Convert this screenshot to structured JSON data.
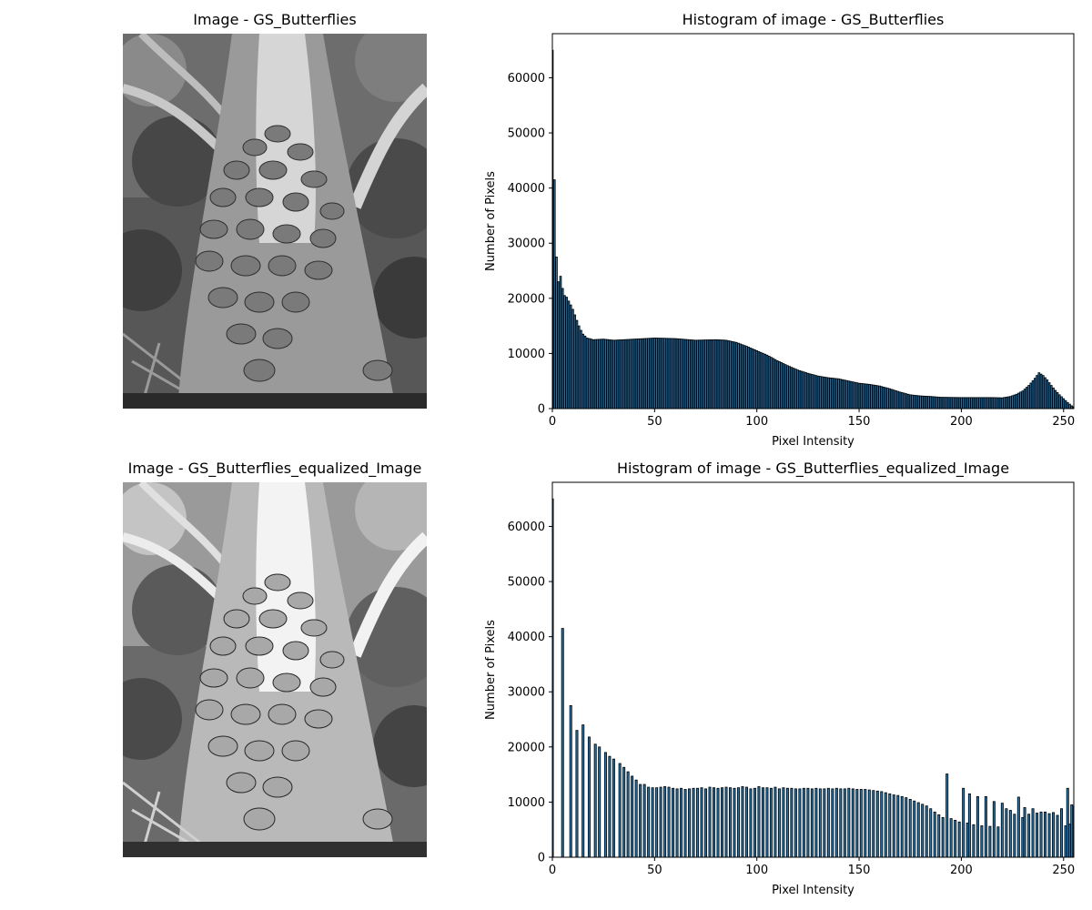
{
  "chart_data": [
    {
      "type": "image",
      "title": "Image - GS_Butterflies",
      "image_content": "grayscale photo of many butterflies covering a tree trunk in a forest with ferns"
    },
    {
      "type": "bar",
      "title": "Histogram of image - GS_Butterflies",
      "xlabel": "Pixel Intensity",
      "ylabel": "Number of Pixels",
      "xlim": [
        0,
        255
      ],
      "ylim": [
        0,
        68000
      ],
      "xticks": [
        "0",
        "50",
        "100",
        "150",
        "200",
        "250"
      ],
      "yticks": [
        "0",
        "10000",
        "20000",
        "30000",
        "40000",
        "50000",
        "60000"
      ],
      "grid": false,
      "bar_color": "#1f77b4",
      "edge_color": "#000000",
      "keypoints": [
        [
          0,
          65000
        ],
        [
          1,
          41500
        ],
        [
          2,
          27500
        ],
        [
          3,
          23000
        ],
        [
          4,
          24000
        ],
        [
          5,
          21800
        ],
        [
          6,
          20500
        ],
        [
          7,
          20200
        ],
        [
          8,
          19500
        ],
        [
          9,
          18800
        ],
        [
          10,
          18000
        ],
        [
          11,
          17000
        ],
        [
          12,
          16000
        ],
        [
          13,
          15000
        ],
        [
          14,
          14200
        ],
        [
          15,
          13500
        ],
        [
          17,
          12800
        ],
        [
          20,
          12500
        ],
        [
          25,
          12600
        ],
        [
          30,
          12400
        ],
        [
          40,
          12600
        ],
        [
          50,
          12800
        ],
        [
          60,
          12700
        ],
        [
          70,
          12400
        ],
        [
          80,
          12500
        ],
        [
          85,
          12400
        ],
        [
          90,
          12000
        ],
        [
          95,
          11300
        ],
        [
          100,
          10500
        ],
        [
          105,
          9700
        ],
        [
          110,
          8700
        ],
        [
          115,
          7800
        ],
        [
          120,
          7000
        ],
        [
          125,
          6400
        ],
        [
          130,
          5900
        ],
        [
          135,
          5600
        ],
        [
          140,
          5400
        ],
        [
          145,
          5000
        ],
        [
          150,
          4600
        ],
        [
          155,
          4400
        ],
        [
          160,
          4100
        ],
        [
          165,
          3600
        ],
        [
          170,
          3000
        ],
        [
          175,
          2500
        ],
        [
          180,
          2300
        ],
        [
          185,
          2200
        ],
        [
          190,
          2050
        ],
        [
          200,
          2000
        ],
        [
          210,
          2000
        ],
        [
          215,
          2000
        ],
        [
          220,
          1950
        ],
        [
          224,
          2200
        ],
        [
          227,
          2600
        ],
        [
          230,
          3200
        ],
        [
          233,
          4200
        ],
        [
          236,
          5500
        ],
        [
          238,
          6500
        ],
        [
          240,
          6000
        ],
        [
          242,
          5200
        ],
        [
          244,
          4200
        ],
        [
          246,
          3300
        ],
        [
          248,
          2500
        ],
        [
          250,
          1800
        ],
        [
          252,
          1100
        ],
        [
          254,
          500
        ],
        [
          255,
          300
        ]
      ]
    },
    {
      "type": "image",
      "title": "Image - GS_Butterflies_equalized_Image",
      "image_content": "histogram-equalized grayscale photo of butterflies covering a tree trunk"
    },
    {
      "type": "bar",
      "title": "Histogram of image - GS_Butterflies_equalized_Image",
      "xlabel": "Pixel Intensity",
      "ylabel": "Number of Pixels",
      "xlim": [
        0,
        255
      ],
      "ylim": [
        0,
        68000
      ],
      "xticks": [
        "0",
        "50",
        "100",
        "150",
        "200",
        "250"
      ],
      "yticks": [
        "0",
        "10000",
        "20000",
        "30000",
        "40000",
        "50000",
        "60000"
      ],
      "grid": false,
      "bar_color": "#1f77b4",
      "edge_color": "#000000",
      "bars": [
        [
          0,
          65000
        ],
        [
          5,
          41500
        ],
        [
          9,
          27500
        ],
        [
          12,
          23000
        ],
        [
          15,
          24000
        ],
        [
          18,
          21800
        ],
        [
          21,
          20500
        ],
        [
          23,
          20000
        ],
        [
          26,
          19000
        ],
        [
          28,
          18300
        ],
        [
          30,
          17800
        ],
        [
          33,
          17000
        ],
        [
          35,
          16300
        ],
        [
          37,
          15500
        ],
        [
          39,
          14700
        ],
        [
          41,
          14000
        ],
        [
          43,
          13200
        ],
        [
          45,
          13200
        ],
        [
          47,
          12700
        ],
        [
          49,
          12600
        ],
        [
          51,
          12600
        ],
        [
          53,
          12700
        ],
        [
          55,
          12800
        ],
        [
          57,
          12700
        ],
        [
          59,
          12500
        ],
        [
          61,
          12400
        ],
        [
          63,
          12500
        ],
        [
          65,
          12300
        ],
        [
          67,
          12400
        ],
        [
          69,
          12500
        ],
        [
          71,
          12500
        ],
        [
          73,
          12600
        ],
        [
          75,
          12400
        ],
        [
          77,
          12700
        ],
        [
          79,
          12600
        ],
        [
          81,
          12500
        ],
        [
          83,
          12600
        ],
        [
          85,
          12700
        ],
        [
          87,
          12600
        ],
        [
          89,
          12500
        ],
        [
          91,
          12600
        ],
        [
          93,
          12800
        ],
        [
          95,
          12700
        ],
        [
          97,
          12400
        ],
        [
          99,
          12500
        ],
        [
          101,
          12800
        ],
        [
          103,
          12600
        ],
        [
          105,
          12600
        ],
        [
          107,
          12500
        ],
        [
          109,
          12700
        ],
        [
          111,
          12400
        ],
        [
          113,
          12600
        ],
        [
          115,
          12500
        ],
        [
          117,
          12500
        ],
        [
          119,
          12400
        ],
        [
          121,
          12400
        ],
        [
          123,
          12500
        ],
        [
          125,
          12500
        ],
        [
          127,
          12400
        ],
        [
          129,
          12500
        ],
        [
          131,
          12400
        ],
        [
          133,
          12400
        ],
        [
          135,
          12500
        ],
        [
          137,
          12400
        ],
        [
          139,
          12500
        ],
        [
          141,
          12400
        ],
        [
          143,
          12400
        ],
        [
          145,
          12500
        ],
        [
          147,
          12400
        ],
        [
          149,
          12300
        ],
        [
          151,
          12300
        ],
        [
          153,
          12300
        ],
        [
          155,
          12200
        ],
        [
          157,
          12100
        ],
        [
          159,
          12000
        ],
        [
          161,
          11900
        ],
        [
          163,
          11700
        ],
        [
          165,
          11500
        ],
        [
          167,
          11300
        ],
        [
          169,
          11200
        ],
        [
          171,
          11000
        ],
        [
          173,
          10800
        ],
        [
          175,
          10500
        ],
        [
          177,
          10200
        ],
        [
          179,
          9900
        ],
        [
          181,
          9600
        ],
        [
          183,
          9300
        ],
        [
          185,
          8800
        ],
        [
          187,
          8200
        ],
        [
          189,
          7700
        ],
        [
          191,
          7200
        ],
        [
          193,
          15100
        ],
        [
          195,
          7000
        ],
        [
          197,
          6700
        ],
        [
          199,
          6400
        ],
        [
          201,
          12500
        ],
        [
          203,
          6200
        ],
        [
          204,
          11500
        ],
        [
          206,
          5900
        ],
        [
          208,
          11000
        ],
        [
          210,
          5700
        ],
        [
          212,
          11000
        ],
        [
          214,
          5600
        ],
        [
          216,
          10100
        ],
        [
          218,
          5500
        ],
        [
          220,
          9800
        ],
        [
          222,
          8800
        ],
        [
          224,
          8500
        ],
        [
          226,
          7800
        ],
        [
          228,
          10900
        ],
        [
          230,
          7200
        ],
        [
          231,
          9000
        ],
        [
          233,
          7800
        ],
        [
          235,
          8800
        ],
        [
          237,
          8000
        ],
        [
          239,
          8200
        ],
        [
          241,
          8200
        ],
        [
          243,
          7900
        ],
        [
          245,
          8100
        ],
        [
          247,
          7600
        ],
        [
          249,
          8800
        ],
        [
          251,
          5700
        ],
        [
          252,
          12500
        ],
        [
          253,
          6000
        ],
        [
          254,
          9500
        ],
        [
          255,
          9200
        ]
      ]
    }
  ]
}
